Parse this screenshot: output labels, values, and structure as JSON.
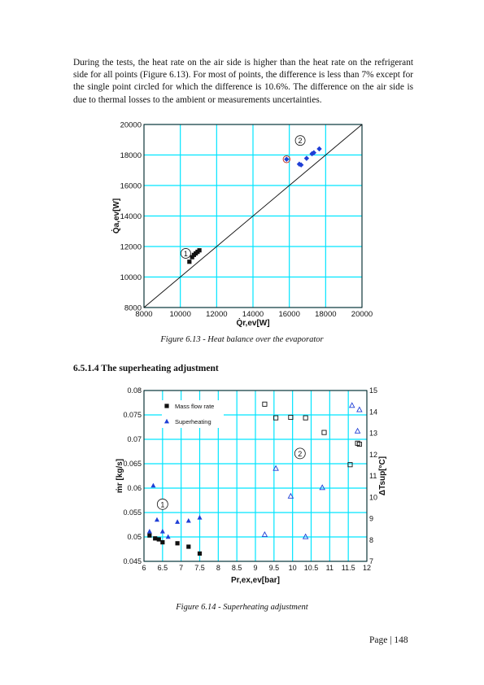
{
  "paragraph": "During the tests, the heat rate on the air side is higher than the heat rate on the refrigerant side for all points (Figure 6.13). For most of points, the difference is less than 7% except for the single point circled for which the difference is 10.6%. The difference on the air side is due to thermal losses to the ambient or measurements uncertainties.",
  "figure1_caption": "Figure 6.13 - Heat balance over the evaporator",
  "section_heading": "6.5.1.4 The superheating adjustment",
  "figure2_caption": "Figure 6.14 - Superheating adjustment",
  "page_label": "Page | 148",
  "chart_data": [
    {
      "type": "scatter",
      "title": "",
      "xlabel": "Q̇r,ev[W]",
      "ylabel": "Q̇a,ev[W]",
      "xlim": [
        8000,
        20000
      ],
      "ylim": [
        8000,
        20000
      ],
      "xticks": [
        8000,
        10000,
        12000,
        14000,
        16000,
        18000,
        20000
      ],
      "yticks": [
        8000,
        10000,
        12000,
        14000,
        16000,
        18000,
        20000
      ],
      "grid": true,
      "grid_color": "#00e5ff",
      "reference_line": {
        "from": [
          8000,
          8000
        ],
        "to": [
          20000,
          20000
        ]
      },
      "annotations": [
        {
          "text": "1",
          "x": 10300,
          "y": 11550
        },
        {
          "text": "2",
          "x": 16600,
          "y": 18950
        }
      ],
      "circled_point": {
        "x": 15850,
        "y": 17720
      },
      "series": [
        {
          "marker": "square",
          "color": "#111111",
          "points": [
            [
              10500,
              11000
            ],
            [
              10650,
              11300
            ],
            [
              10750,
              11450
            ],
            [
              10850,
              11550
            ],
            [
              10950,
              11650
            ],
            [
              11050,
              11750
            ]
          ]
        },
        {
          "marker": "diamond",
          "color": "#1f3fd6",
          "points": [
            [
              15850,
              17720
            ],
            [
              16550,
              17400
            ],
            [
              16650,
              17350
            ],
            [
              16950,
              17780
            ],
            [
              17250,
              18080
            ],
            [
              17350,
              18150
            ],
            [
              17650,
              18400
            ]
          ]
        }
      ]
    },
    {
      "type": "scatter",
      "title": "",
      "xlabel": "Pr,ex,ev[bar]",
      "ylabel": "ṁr [kg/s]",
      "y2label": "ΔTsup[°C]",
      "xlim": [
        6,
        12
      ],
      "ylim": [
        0.045,
        0.08
      ],
      "y2lim": [
        7,
        15
      ],
      "xticks": [
        6,
        6.5,
        7,
        7.5,
        8,
        8.5,
        9,
        9.5,
        10,
        10.5,
        11,
        11.5,
        12
      ],
      "yticks": [
        0.045,
        0.05,
        0.055,
        0.06,
        0.065,
        0.07,
        0.075,
        0.08
      ],
      "y2ticks": [
        7,
        8,
        9,
        10,
        11,
        12,
        13,
        14,
        15
      ],
      "grid": true,
      "grid_color": "#00e5ff",
      "legend": {
        "position": "top-left",
        "entries": [
          "Mass flow rate",
          "Superheating"
        ]
      },
      "annotations": [
        {
          "text": "1",
          "x": 6.5,
          "y": 0.0567
        },
        {
          "text": "2",
          "x": 10.2,
          "y": 0.0671
        }
      ],
      "series": [
        {
          "name": "Mass flow rate",
          "axis": "left",
          "group": 1,
          "marker": "square-filled",
          "color": "#111111",
          "x": [
            6.15,
            6.3,
            6.4,
            6.5,
            6.9,
            7.2,
            7.5
          ],
          "y": [
            0.0503,
            0.0497,
            0.0495,
            0.0489,
            0.0487,
            0.048,
            0.0466
          ]
        },
        {
          "name": "Superheating",
          "axis": "right",
          "group": 1,
          "marker": "triangle-filled",
          "color": "#1f3fd6",
          "x": [
            6.15,
            6.25,
            6.35,
            6.5,
            6.65,
            6.9,
            7.2,
            7.5
          ],
          "y": [
            8.4,
            10.55,
            8.95,
            8.4,
            8.15,
            8.85,
            8.9,
            9.05
          ]
        },
        {
          "name": "Mass flow rate",
          "axis": "left",
          "group": 2,
          "marker": "square-open",
          "color": "#111111",
          "x": [
            9.25,
            9.55,
            9.95,
            10.35,
            10.85,
            11.55,
            11.75,
            11.8
          ],
          "y": [
            0.0772,
            0.0744,
            0.0745,
            0.0744,
            0.0714,
            0.0648,
            0.0692,
            0.069
          ]
        },
        {
          "name": "Superheating",
          "axis": "right",
          "group": 2,
          "marker": "triangle-open",
          "color": "#1f3fd6",
          "x": [
            9.25,
            9.55,
            9.95,
            10.35,
            10.8,
            11.6,
            11.75,
            11.8
          ],
          "y": [
            8.25,
            11.35,
            10.05,
            8.15,
            10.45,
            14.3,
            13.1,
            14.1
          ]
        }
      ]
    }
  ]
}
